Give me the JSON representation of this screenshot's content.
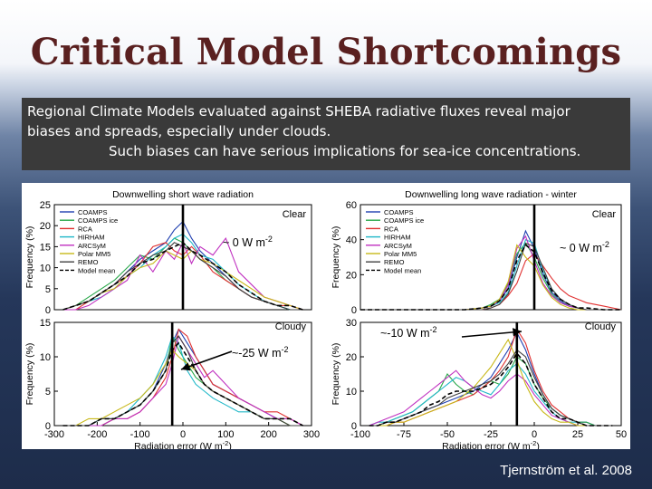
{
  "slide": {
    "title": "Critical Model Shortcomings",
    "callout": {
      "line1": "Regional Climate Models evaluated against SHEBA radiative fluxes reveal major",
      "line2": "biases and spreads, especially under clouds.",
      "line3": "Such biases can have serious implications for sea-ice concentrations."
    },
    "citation": "Tjernström et al. 2008"
  },
  "colors": {
    "title": "#5a2020",
    "callout_bg": "#3a3a3a",
    "arrow": "#000000"
  },
  "legend_entries": [
    {
      "name": "COAMPS",
      "color": "#1f3fb0",
      "dash": false
    },
    {
      "name": "COAMPS ice",
      "color": "#2aa84a",
      "dash": false
    },
    {
      "name": "RCA",
      "color": "#e03030",
      "dash": false
    },
    {
      "name": "HIRHAM",
      "color": "#20b8c8",
      "dash": false
    },
    {
      "name": "ARCSyM",
      "color": "#c030c0",
      "dash": false
    },
    {
      "name": "Polar MM5",
      "color": "#c8b818",
      "dash": false
    },
    {
      "name": "REMO",
      "color": "#404040",
      "dash": false
    },
    {
      "name": "Model mean",
      "color": "#000000",
      "dash": true
    }
  ],
  "chart_data": [
    {
      "id": "sw-clear",
      "type": "line",
      "title": "Downwelling short wave radiation",
      "condition": "Clear",
      "xlabel": "",
      "ylabel": "Frequency (%)",
      "xlim": [
        -300,
        300
      ],
      "ylim": [
        0,
        25
      ],
      "yticks": [
        0,
        5,
        10,
        15,
        20,
        25
      ],
      "annotation": "~ 0 W m",
      "annotation_sup": "-2",
      "marker_x": 0,
      "x": [
        -280,
        -250,
        -220,
        -190,
        -160,
        -130,
        -100,
        -70,
        -40,
        -20,
        0,
        20,
        40,
        70,
        100,
        130,
        160,
        190,
        220,
        250,
        280
      ],
      "series": [
        {
          "name": "COAMPS",
          "values": [
            0,
            1,
            2,
            4,
            6,
            9,
            12,
            14,
            16,
            19,
            21,
            17,
            14,
            11,
            8,
            5,
            3,
            2,
            1,
            0,
            0
          ]
        },
        {
          "name": "COAMPS ice",
          "values": [
            0,
            1,
            3,
            5,
            7,
            10,
            13,
            12,
            15,
            17,
            16,
            14,
            12,
            10,
            7,
            5,
            3,
            2,
            1,
            0,
            0
          ]
        },
        {
          "name": "RCA",
          "values": [
            0,
            0,
            2,
            4,
            6,
            8,
            11,
            15,
            16,
            14,
            13,
            15,
            13,
            9,
            7,
            5,
            3,
            2,
            1,
            1,
            0
          ]
        },
        {
          "name": "HIRHAM",
          "values": [
            0,
            1,
            2,
            3,
            5,
            8,
            10,
            13,
            15,
            17,
            18,
            16,
            13,
            12,
            9,
            6,
            4,
            2,
            1,
            0,
            0
          ]
        },
        {
          "name": "ARCSyM",
          "values": [
            0,
            0,
            1,
            3,
            5,
            7,
            13,
            9,
            14,
            12,
            16,
            11,
            15,
            13,
            17,
            9,
            6,
            3,
            2,
            1,
            0
          ]
        },
        {
          "name": "Polar MM5",
          "values": [
            0,
            1,
            2,
            4,
            5,
            8,
            10,
            11,
            14,
            13,
            12,
            14,
            12,
            11,
            9,
            7,
            5,
            3,
            2,
            1,
            0
          ]
        },
        {
          "name": "REMO",
          "values": [
            0,
            1,
            2,
            4,
            6,
            9,
            11,
            13,
            14,
            16,
            15,
            14,
            12,
            10,
            8,
            5,
            3,
            2,
            1,
            0,
            0
          ]
        },
        {
          "name": "Model mean",
          "values": [
            0,
            1,
            2,
            4,
            6,
            8,
            11,
            12,
            14,
            15,
            16,
            14,
            13,
            11,
            9,
            6,
            4,
            2,
            1,
            1,
            0
          ]
        }
      ]
    },
    {
      "id": "sw-cloudy",
      "type": "line",
      "title": "",
      "condition": "Cloudy",
      "xlabel": "Radiation error (W m",
      "xlabel_sup": "-2",
      "xlabel_end": ")",
      "ylabel": "Frequency (%)",
      "xlim": [
        -300,
        300
      ],
      "ylim": [
        0,
        15
      ],
      "xticks": [
        -300,
        -200,
        -100,
        0,
        100,
        200,
        300
      ],
      "yticks": [
        0,
        5,
        10,
        15
      ],
      "annotation": "~-25 W m",
      "annotation_sup": "-2",
      "marker_x": -25,
      "x": [
        -280,
        -250,
        -220,
        -190,
        -160,
        -130,
        -100,
        -70,
        -40,
        -25,
        -10,
        10,
        30,
        50,
        70,
        100,
        130,
        160,
        190,
        220,
        250,
        280
      ],
      "series": [
        {
          "name": "COAMPS",
          "values": [
            0,
            0,
            0,
            1,
            1,
            2,
            3,
            5,
            9,
            12,
            14,
            12,
            10,
            8,
            6,
            5,
            4,
            3,
            2,
            1,
            1,
            0
          ]
        },
        {
          "name": "COAMPS ice",
          "values": [
            0,
            0,
            0,
            0,
            1,
            2,
            3,
            5,
            8,
            13,
            11,
            9,
            7,
            6,
            5,
            4,
            3,
            2,
            1,
            1,
            0,
            0
          ]
        },
        {
          "name": "RCA",
          "values": [
            0,
            0,
            0,
            0,
            1,
            1,
            2,
            4,
            7,
            10,
            14,
            13,
            10,
            8,
            6,
            5,
            4,
            3,
            2,
            2,
            1,
            0
          ]
        },
        {
          "name": "HIRHAM",
          "values": [
            0,
            0,
            0,
            1,
            1,
            2,
            4,
            6,
            10,
            13,
            12,
            8,
            6,
            5,
            4,
            3,
            2,
            2,
            1,
            1,
            0,
            0
          ]
        },
        {
          "name": "ARCSyM",
          "values": [
            0,
            0,
            0,
            0,
            1,
            1,
            2,
            4,
            6,
            9,
            13,
            11,
            9,
            7,
            8,
            6,
            4,
            3,
            2,
            1,
            1,
            0
          ]
        },
        {
          "name": "Polar MM5",
          "values": [
            0,
            0,
            1,
            1,
            2,
            3,
            4,
            6,
            9,
            11,
            10,
            9,
            8,
            6,
            5,
            4,
            3,
            2,
            1,
            1,
            0,
            0
          ]
        },
        {
          "name": "REMO",
          "values": [
            0,
            0,
            0,
            1,
            1,
            2,
            3,
            5,
            8,
            12,
            13,
            11,
            8,
            6,
            5,
            4,
            3,
            2,
            1,
            1,
            0,
            0
          ]
        },
        {
          "name": "Model mean",
          "values": [
            0,
            0,
            0,
            1,
            1,
            2,
            3,
            5,
            8,
            11,
            12,
            10,
            8,
            6,
            5,
            4,
            3,
            2,
            1,
            1,
            1,
            0
          ]
        }
      ]
    },
    {
      "id": "lw-clear",
      "type": "line",
      "title": "Downwelling long wave radiation - winter",
      "condition": "Clear",
      "xlabel": "",
      "ylabel": "Frequency (%)",
      "xlim": [
        -100,
        50
      ],
      "ylim": [
        0,
        60
      ],
      "yticks": [
        0,
        20,
        40,
        60
      ],
      "annotation": "~ 0 W m",
      "annotation_sup": "-2",
      "marker_x": 0,
      "x": [
        -100,
        -90,
        -80,
        -70,
        -60,
        -50,
        -40,
        -30,
        -25,
        -20,
        -15,
        -10,
        -5,
        0,
        5,
        10,
        15,
        20,
        25,
        30,
        40,
        50
      ],
      "series": [
        {
          "name": "COAMPS",
          "values": [
            0,
            0,
            0,
            0,
            0,
            0,
            0,
            1,
            2,
            5,
            12,
            30,
            45,
            35,
            20,
            10,
            5,
            2,
            1,
            0,
            0,
            0
          ]
        },
        {
          "name": "COAMPS ice",
          "values": [
            0,
            0,
            0,
            0,
            0,
            0,
            0,
            1,
            3,
            6,
            15,
            32,
            38,
            30,
            18,
            9,
            4,
            2,
            1,
            0,
            0,
            0
          ]
        },
        {
          "name": "RCA",
          "values": [
            0,
            0,
            0,
            0,
            0,
            0,
            0,
            0,
            1,
            3,
            8,
            15,
            28,
            32,
            25,
            18,
            12,
            8,
            6,
            4,
            2,
            0
          ]
        },
        {
          "name": "HIRHAM",
          "values": [
            0,
            0,
            0,
            0,
            0,
            0,
            0,
            1,
            2,
            4,
            10,
            25,
            40,
            38,
            22,
            12,
            6,
            3,
            1,
            0,
            0,
            0
          ]
        },
        {
          "name": "ARCSyM",
          "values": [
            0,
            0,
            0,
            0,
            0,
            0,
            0,
            1,
            2,
            5,
            14,
            35,
            42,
            28,
            15,
            8,
            4,
            2,
            1,
            0,
            0,
            0
          ]
        },
        {
          "name": "Polar MM5",
          "values": [
            0,
            0,
            0,
            0,
            0,
            0,
            0,
            1,
            2,
            6,
            16,
            37,
            30,
            25,
            14,
            7,
            3,
            1,
            0,
            0,
            0,
            0
          ]
        },
        {
          "name": "REMO",
          "values": [
            0,
            0,
            0,
            0,
            0,
            0,
            0,
            0,
            1,
            3,
            9,
            22,
            38,
            36,
            24,
            12,
            6,
            3,
            1,
            0,
            0,
            0
          ]
        },
        {
          "name": "Model mean",
          "values": [
            0,
            0,
            0,
            0,
            0,
            0,
            0,
            1,
            2,
            5,
            12,
            28,
            37,
            33,
            21,
            11,
            6,
            3,
            1,
            1,
            0,
            0
          ]
        }
      ]
    },
    {
      "id": "lw-cloudy",
      "type": "line",
      "title": "",
      "condition": "Cloudy",
      "xlabel": "Radiation error (W m",
      "xlabel_sup": "-2",
      "xlabel_end": ")",
      "ylabel": "Frequency (%)",
      "xlim": [
        -100,
        50
      ],
      "ylim": [
        0,
        30
      ],
      "xticks": [
        -100,
        -75,
        -50,
        -25,
        0,
        25,
        50
      ],
      "yticks": [
        0,
        10,
        20,
        30
      ],
      "annotation": "~-10 W m",
      "annotation_sup": "-2",
      "marker_x": -10,
      "x": [
        -95,
        -90,
        -85,
        -80,
        -75,
        -70,
        -65,
        -60,
        -55,
        -50,
        -45,
        -40,
        -35,
        -30,
        -25,
        -20,
        -15,
        -10,
        -5,
        0,
        5,
        10,
        15,
        20,
        25,
        30,
        35,
        40,
        45
      ],
      "series": [
        {
          "name": "COAMPS",
          "values": [
            0,
            0,
            1,
            1,
            2,
            3,
            4,
            5,
            6,
            7,
            8,
            9,
            10,
            12,
            14,
            18,
            22,
            27,
            22,
            15,
            9,
            5,
            3,
            2,
            1,
            1,
            0,
            0,
            0
          ]
        },
        {
          "name": "COAMPS ice",
          "values": [
            0,
            0,
            1,
            2,
            3,
            4,
            6,
            8,
            10,
            15,
            12,
            10,
            9,
            11,
            13,
            12,
            15,
            20,
            18,
            12,
            8,
            5,
            3,
            2,
            1,
            1,
            0,
            0,
            0
          ]
        },
        {
          "name": "RCA",
          "values": [
            0,
            0,
            0,
            1,
            1,
            2,
            3,
            4,
            5,
            6,
            7,
            8,
            9,
            11,
            13,
            16,
            20,
            28,
            24,
            16,
            10,
            6,
            4,
            2,
            1,
            0,
            0,
            0,
            0
          ]
        },
        {
          "name": "HIRHAM",
          "values": [
            0,
            1,
            1,
            2,
            3,
            4,
            6,
            8,
            10,
            12,
            14,
            13,
            11,
            10,
            9,
            12,
            16,
            18,
            15,
            10,
            7,
            4,
            2,
            1,
            1,
            0,
            0,
            0,
            0
          ]
        },
        {
          "name": "ARCSyM",
          "values": [
            0,
            1,
            2,
            3,
            4,
            6,
            8,
            10,
            12,
            14,
            16,
            13,
            11,
            9,
            8,
            10,
            13,
            15,
            13,
            9,
            6,
            3,
            2,
            1,
            0,
            0,
            0,
            0,
            0
          ]
        },
        {
          "name": "Polar MM5",
          "values": [
            0,
            0,
            0,
            1,
            1,
            2,
            3,
            4,
            5,
            6,
            7,
            9,
            11,
            14,
            17,
            21,
            25,
            19,
            12,
            7,
            4,
            2,
            1,
            1,
            0,
            0,
            0,
            0,
            0
          ]
        },
        {
          "name": "REMO",
          "values": [
            0,
            0,
            1,
            1,
            2,
            3,
            4,
            5,
            6,
            8,
            9,
            10,
            11,
            12,
            13,
            15,
            18,
            22,
            20,
            14,
            9,
            5,
            3,
            2,
            1,
            0,
            0,
            0,
            0
          ]
        },
        {
          "name": "Model mean",
          "values": [
            0,
            0,
            1,
            1,
            2,
            3,
            4,
            6,
            7,
            9,
            10,
            10,
            10,
            11,
            12,
            14,
            17,
            21,
            18,
            12,
            8,
            4,
            2,
            2,
            1,
            0,
            0,
            0,
            0
          ]
        }
      ]
    }
  ]
}
